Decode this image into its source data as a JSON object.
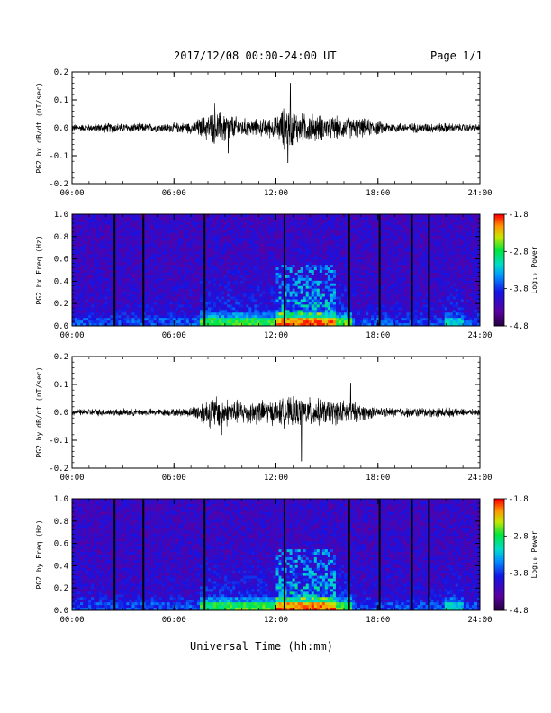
{
  "header": {
    "date_range": "2017/12/08  00:00-24:00 UT",
    "page": "Page 1/1"
  },
  "xaxis_title": "Universal Time (hh:mm)",
  "colorbar": {
    "label": "Log₁₀ Power",
    "ticks": [
      "-1.8",
      "-2.8",
      "-3.8",
      "-4.8"
    ],
    "range": [
      -4.8,
      -1.8
    ]
  },
  "chart_data": [
    {
      "type": "line",
      "ylabel": "PG2 bx dB/dt (nT/sec)",
      "xlim_hours": [
        0,
        24
      ],
      "x_ticks": [
        "00:00",
        "06:00",
        "12:00",
        "18:00",
        "24:00"
      ],
      "ylim": [
        -0.2,
        0.2
      ],
      "y_ticks": [
        "0.2",
        "0.1",
        "0.0",
        "-0.1",
        "-0.2"
      ],
      "envelope": {
        "hours": [
          0,
          1,
          2,
          3,
          4,
          5,
          6,
          7,
          7.5,
          8,
          8.5,
          9,
          9.5,
          10,
          11,
          12,
          12.5,
          13,
          13.5,
          14,
          15,
          16,
          17,
          18,
          19,
          20,
          21,
          22,
          23,
          24
        ],
        "amplitude": [
          0.015,
          0.015,
          0.02,
          0.02,
          0.018,
          0.018,
          0.02,
          0.025,
          0.04,
          0.06,
          0.07,
          0.07,
          0.05,
          0.04,
          0.035,
          0.045,
          0.09,
          0.08,
          0.06,
          0.06,
          0.05,
          0.045,
          0.04,
          0.03,
          0.02,
          0.02,
          0.02,
          0.02,
          0.015,
          0.015
        ]
      },
      "peaks": [
        {
          "hour": 12.85,
          "value": 0.16
        },
        {
          "hour": 12.7,
          "value": -0.125
        },
        {
          "hour": 8.4,
          "value": 0.09
        },
        {
          "hour": 9.2,
          "value": -0.09
        }
      ]
    },
    {
      "type": "heatmap",
      "ylabel": "PG2 bx Freq (Hz)",
      "xlim_hours": [
        0,
        24
      ],
      "x_ticks": [
        "00:00",
        "06:00",
        "12:00",
        "18:00",
        "24:00"
      ],
      "ylim": [
        0.0,
        1.0
      ],
      "y_ticks": [
        "1.0",
        "0.8",
        "0.6",
        "0.4",
        "0.2",
        "0.0"
      ],
      "z_range": [
        -4.8,
        -1.8
      ],
      "gap_hours": [
        2.5,
        4.2,
        7.8,
        12.5,
        16.3,
        18.1,
        20.0,
        21.0
      ],
      "activity": [
        {
          "hours": [
            7.5,
            16.5
          ],
          "level": 1.0
        },
        {
          "hours": [
            12.0,
            15.5
          ],
          "level": 1.5
        },
        {
          "hours": [
            22.0,
            23.0
          ],
          "level": 0.7
        }
      ]
    },
    {
      "type": "line",
      "ylabel": "PG2 by dB/dt (nT/sec)",
      "xlim_hours": [
        0,
        24
      ],
      "x_ticks": [
        "00:00",
        "06:00",
        "12:00",
        "18:00",
        "24:00"
      ],
      "ylim": [
        -0.2,
        0.2
      ],
      "y_ticks": [
        "0.2",
        "0.1",
        "0.0",
        "-0.1",
        "-0.2"
      ],
      "envelope": {
        "hours": [
          0,
          1,
          2,
          3,
          4,
          5,
          6,
          7,
          7.5,
          8,
          8.5,
          9,
          9.5,
          10,
          11,
          12,
          12.5,
          13,
          13.5,
          14,
          15,
          16,
          17,
          18,
          19,
          20,
          21,
          22,
          23,
          24
        ],
        "amplitude": [
          0.012,
          0.015,
          0.015,
          0.015,
          0.015,
          0.015,
          0.015,
          0.02,
          0.04,
          0.06,
          0.07,
          0.06,
          0.05,
          0.05,
          0.05,
          0.05,
          0.06,
          0.06,
          0.06,
          0.06,
          0.05,
          0.05,
          0.035,
          0.02,
          0.02,
          0.02,
          0.02,
          0.02,
          0.015,
          0.012
        ]
      },
      "peaks": [
        {
          "hour": 13.5,
          "value": -0.175
        },
        {
          "hour": 16.4,
          "value": 0.105
        },
        {
          "hour": 8.8,
          "value": -0.08
        }
      ]
    },
    {
      "type": "heatmap",
      "ylabel": "PG2 by Freq (Hz)",
      "xlim_hours": [
        0,
        24
      ],
      "x_ticks": [
        "00:00",
        "06:00",
        "12:00",
        "18:00",
        "24:00"
      ],
      "ylim": [
        0.0,
        1.0
      ],
      "y_ticks": [
        "1.0",
        "0.8",
        "0.6",
        "0.4",
        "0.2",
        "0.0"
      ],
      "z_range": [
        -4.8,
        -1.8
      ],
      "gap_hours": [
        2.5,
        4.2,
        7.8,
        12.5,
        16.3,
        18.1,
        20.0,
        21.0
      ],
      "activity": [
        {
          "hours": [
            7.5,
            16.5
          ],
          "level": 1.0
        },
        {
          "hours": [
            12.0,
            15.5
          ],
          "level": 1.5
        },
        {
          "hours": [
            22.0,
            23.0
          ],
          "level": 0.7
        }
      ]
    }
  ]
}
